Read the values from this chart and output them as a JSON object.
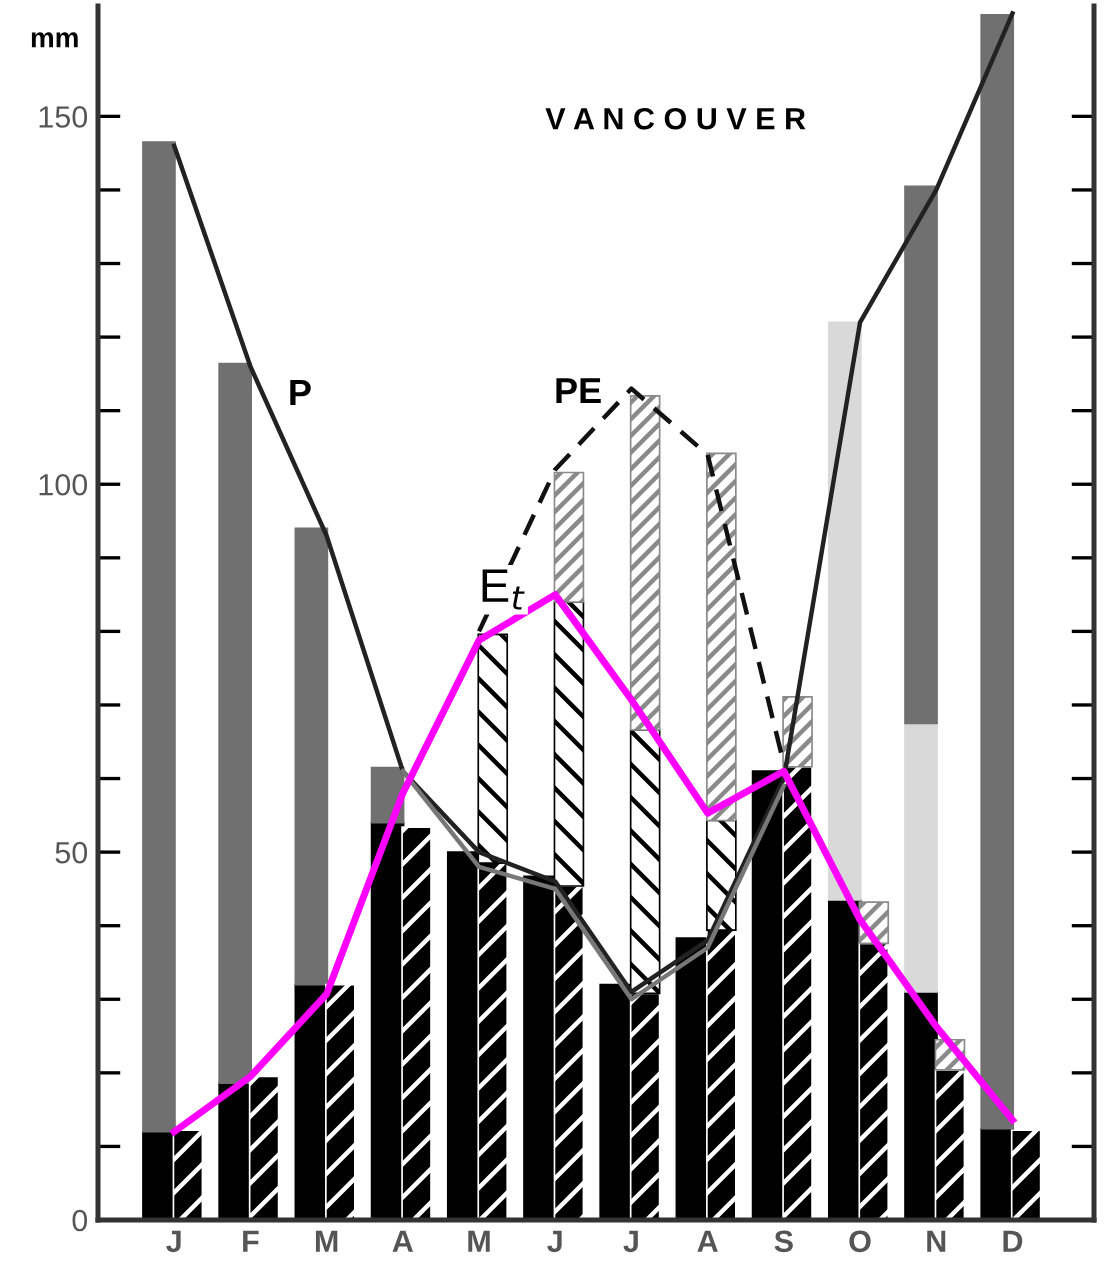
{
  "chart_data": {
    "type": "bar",
    "title": "V A N C O U V E R",
    "ylabel": "mm",
    "categories": [
      "J",
      "F",
      "M",
      "A",
      "M",
      "J",
      "J",
      "A",
      "S",
      "O",
      "N",
      "D"
    ],
    "ylim": [
      0,
      165
    ],
    "yticks": [
      0,
      {
        "value": 10,
        "label": null
      },
      {
        "value": 20,
        "label": null
      },
      {
        "value": 30,
        "label": null
      },
      {
        "value": 40,
        "label": null
      },
      50,
      {
        "value": 60,
        "label": null
      },
      {
        "value": 70,
        "label": null
      },
      {
        "value": 80,
        "label": null
      },
      {
        "value": 90,
        "label": null
      },
      100,
      {
        "value": 110,
        "label": null
      },
      {
        "value": 120,
        "label": null
      },
      {
        "value": 130,
        "label": null
      },
      {
        "value": 140,
        "label": null
      },
      150
    ],
    "grid": false,
    "legend": false,
    "series": [
      {
        "color": "#000000",
        "base": [
          0,
          0,
          0,
          0,
          0,
          0,
          0,
          0,
          0,
          0,
          0,
          0
        ],
        "values": [
          12,
          18.6,
          32,
          54,
          50,
          46.7,
          32,
          38.3,
          61,
          43.5,
          31,
          12.4
        ]
      },
      {
        "color": "#d9d9d9",
        "base": [
          null,
          null,
          null,
          null,
          null,
          null,
          null,
          null,
          null,
          43.5,
          31,
          null
        ],
        "values": [
          null,
          null,
          null,
          null,
          null,
          null,
          null,
          null,
          null,
          78.5,
          36.5,
          null
        ]
      },
      {
        "color": "#707070",
        "base": [
          12,
          18.6,
          32,
          54,
          null,
          null,
          null,
          null,
          null,
          null,
          67.5,
          12.4
        ],
        "values": [
          134.5,
          97.8,
          62,
          7.5,
          null,
          null,
          null,
          null,
          null,
          null,
          73,
          151.4
        ]
      },
      {
        "color": "#ffffff",
        "base": [
          0,
          0,
          0,
          0,
          0,
          0,
          0,
          0,
          0,
          0,
          0,
          0
        ],
        "values": [
          12.2,
          19.5,
          32,
          53.4,
          48.5,
          45.4,
          30.8,
          39.4,
          61.6,
          37.6,
          20.4,
          12.2
        ]
      },
      {
        "color": "#000000",
        "base": [
          null,
          null,
          null,
          null,
          48.5,
          45.4,
          30.8,
          39.4,
          null,
          null,
          null,
          null
        ],
        "values": [
          null,
          null,
          null,
          null,
          31.1,
          38.6,
          35.8,
          14.9,
          null,
          null,
          null,
          null
        ]
      },
      {
        "color": "#8a8a8a",
        "base": [
          null,
          null,
          null,
          null,
          null,
          84,
          66.6,
          54.3,
          61.6,
          37.6,
          20.4,
          null
        ],
        "values": [
          null,
          null,
          null,
          null,
          null,
          17.6,
          45.4,
          49.9,
          9.5,
          5.6,
          4.1,
          null
        ]
      },
      {
        "type": "line",
        "name": "P",
        "color": "#222222",
        "values": [
          146,
          116,
          93,
          61,
          50,
          46,
          31,
          38,
          60,
          122,
          140,
          164
        ]
      },
      {
        "type": "line",
        "color": "#777777",
        "values": [
          null,
          null,
          null,
          61,
          48,
          45,
          30,
          37,
          59,
          null,
          null,
          null
        ]
      },
      {
        "type": "line",
        "name": "PE",
        "color": "#111111",
        "line_style": "dashed",
        "values": [
          null,
          null,
          null,
          null,
          80,
          102,
          113,
          104,
          62,
          null,
          null,
          null
        ]
      },
      {
        "type": "line",
        "name": "E$_{t}$",
        "color": "#ff00ff",
        "values": [
          12,
          19.5,
          30.7,
          58,
          78.8,
          85,
          70.7,
          55.3,
          61,
          40.8,
          26.3,
          13.6
        ]
      }
    ]
  }
}
